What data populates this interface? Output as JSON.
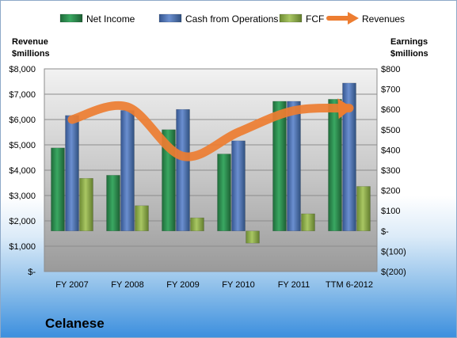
{
  "chart_data": {
    "type": "bar",
    "company": "Celanese",
    "categories": [
      "FY 2007",
      "FY 2008",
      "FY 2009",
      "FY 2010",
      "FY 2011",
      "TTM 6-2012"
    ],
    "left_axis": {
      "title_line1": "Revenue",
      "title_line2": "$millions",
      "ticks": [
        "$-",
        "$1,000",
        "$2,000",
        "$3,000",
        "$4,000",
        "$5,000",
        "$6,000",
        "$7,000",
        "$8,000"
      ],
      "range": [
        0,
        8000
      ]
    },
    "right_axis": {
      "title_line1": "Earnings",
      "title_line2": "$millions",
      "ticks": [
        "$(200)",
        "$(100)",
        "$-",
        "$100",
        "$200",
        "$300",
        "$400",
        "$500",
        "$600",
        "$700",
        "$800"
      ],
      "range": [
        -200,
        800
      ]
    },
    "series": [
      {
        "name": "Net Income",
        "axis": "right",
        "type": "bar",
        "color": "#2e8b4f",
        "values": [
          410,
          275,
          500,
          380,
          640,
          650
        ]
      },
      {
        "name": "Cash from Operations",
        "axis": "right",
        "type": "bar",
        "color": "#4a6fb3",
        "values": [
          570,
          595,
          600,
          445,
          640,
          730
        ]
      },
      {
        "name": "FCF",
        "axis": "right",
        "type": "bar",
        "color": "#8fb04a",
        "values": [
          260,
          125,
          65,
          -60,
          85,
          220
        ]
      },
      {
        "name": "Revenues",
        "axis": "left",
        "type": "line",
        "color": "#ed7d31",
        "values": [
          6000,
          6500,
          4550,
          5500,
          6350,
          6450
        ]
      }
    ],
    "legend_position": "top",
    "grid": true
  }
}
